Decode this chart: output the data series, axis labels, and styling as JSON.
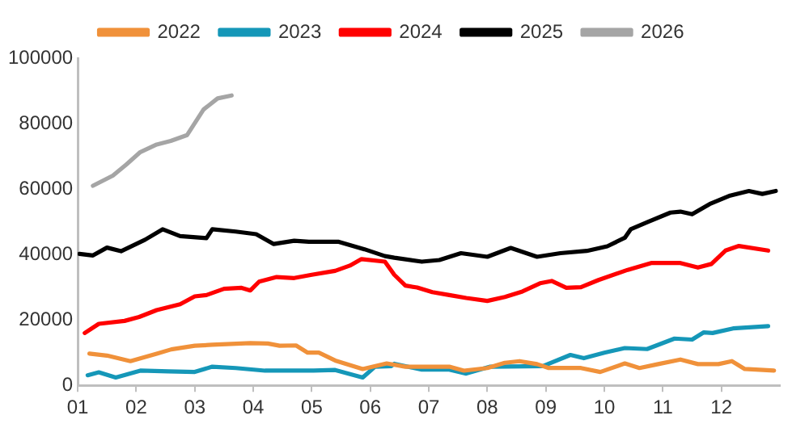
{
  "chart_data": {
    "type": "line",
    "legend": "top",
    "grid": false,
    "marker": "none",
    "line_style": "solid",
    "xlim": [
      1,
      13
    ],
    "xticks": [
      {
        "value": 1,
        "label": "01"
      },
      {
        "value": 2,
        "label": "02"
      },
      {
        "value": 3,
        "label": "03"
      },
      {
        "value": 4,
        "label": "04"
      },
      {
        "value": 5,
        "label": "05"
      },
      {
        "value": 6,
        "label": "06"
      },
      {
        "value": 7,
        "label": "07"
      },
      {
        "value": 8,
        "label": "08"
      },
      {
        "value": 9,
        "label": "09"
      },
      {
        "value": 10,
        "label": "10"
      },
      {
        "value": 11,
        "label": "11"
      },
      {
        "value": 12,
        "label": "12"
      }
    ],
    "ylim": [
      0,
      100000
    ],
    "yticks": [
      0,
      20000,
      40000,
      60000,
      80000,
      100000
    ],
    "series": [
      {
        "name": "2022",
        "color": "#f0913a",
        "x": [
          1.2,
          1.5,
          1.9,
          2.35,
          2.6,
          3.0,
          3.3,
          3.95,
          4.25,
          4.45,
          4.73,
          4.93,
          5.12,
          5.4,
          5.87,
          6.28,
          6.6,
          7.35,
          7.6,
          8.0,
          8.3,
          8.55,
          8.85,
          9.05,
          9.6,
          9.93,
          10.35,
          10.6,
          10.92,
          11.3,
          11.6,
          11.95,
          12.18,
          12.4,
          12.9
        ],
        "values": [
          9700,
          9100,
          7400,
          9700,
          11000,
          12100,
          12400,
          12900,
          12800,
          12100,
          12200,
          10000,
          10000,
          7600,
          5000,
          6700,
          5700,
          5700,
          4500,
          5300,
          6900,
          7400,
          6500,
          5300,
          5300,
          4100,
          6700,
          5300,
          6500,
          7900,
          6500,
          6500,
          7400,
          5000,
          4500
        ]
      },
      {
        "name": "2023",
        "color": "#1597b8",
        "x": [
          1.17,
          1.36,
          1.65,
          2.07,
          2.55,
          3.0,
          3.3,
          3.7,
          4.2,
          4.55,
          5.03,
          5.4,
          5.87,
          6.08,
          6.36,
          6.41,
          6.88,
          7.35,
          7.64,
          8.05,
          8.95,
          9.42,
          9.65,
          10.0,
          10.35,
          10.73,
          11.2,
          11.5,
          11.7,
          11.85,
          12.2,
          12.8
        ],
        "values": [
          3100,
          4000,
          2400,
          4500,
          4300,
          4100,
          5700,
          5300,
          4500,
          4500,
          4500,
          4700,
          2400,
          5700,
          5900,
          6600,
          4800,
          4800,
          3600,
          5700,
          5900,
          9300,
          8300,
          10000,
          11400,
          11100,
          14300,
          14000,
          16200,
          16000,
          17400,
          18100
        ]
      },
      {
        "name": "2024",
        "color": "#ff0000",
        "x": [
          1.12,
          1.36,
          1.8,
          2.05,
          2.35,
          2.75,
          3.0,
          3.2,
          3.5,
          3.8,
          3.95,
          4.1,
          4.4,
          4.7,
          5.0,
          5.4,
          5.65,
          5.85,
          6.25,
          6.41,
          6.6,
          6.8,
          7.06,
          7.35,
          7.64,
          8.0,
          8.3,
          8.6,
          8.9,
          9.1,
          9.35,
          9.6,
          9.9,
          10.4,
          10.8,
          11.3,
          11.6,
          11.83,
          12.07,
          12.3,
          12.8
        ],
        "values": [
          16000,
          18800,
          19700,
          20900,
          23000,
          24800,
          27200,
          27600,
          29500,
          29800,
          29000,
          31700,
          33100,
          32800,
          33800,
          35000,
          36600,
          38600,
          37800,
          33800,
          30500,
          29900,
          28500,
          27600,
          26700,
          25800,
          27000,
          28700,
          31200,
          31900,
          29800,
          30000,
          32200,
          35300,
          37400,
          37400,
          36000,
          37100,
          41200,
          42600,
          41200
        ]
      },
      {
        "name": "2025",
        "color": "#000000",
        "x": [
          1.03,
          1.26,
          1.5,
          1.74,
          2.15,
          2.45,
          2.75,
          3.2,
          3.3,
          3.7,
          4.05,
          4.35,
          4.7,
          4.95,
          5.45,
          5.9,
          6.25,
          6.41,
          6.88,
          7.18,
          7.55,
          8.0,
          8.4,
          8.85,
          9.25,
          9.7,
          10.05,
          10.35,
          10.45,
          10.75,
          11.13,
          11.3,
          11.5,
          11.8,
          12.15,
          12.47,
          12.7,
          12.93
        ],
        "values": [
          40200,
          39700,
          42100,
          41000,
          44500,
          47700,
          45600,
          45000,
          47700,
          47000,
          46200,
          43200,
          44200,
          43900,
          43900,
          41600,
          39500,
          39000,
          37800,
          38300,
          40400,
          39300,
          42000,
          39300,
          40400,
          41100,
          42500,
          45100,
          47700,
          50000,
          52800,
          53100,
          52300,
          55400,
          58000,
          59400,
          58500,
          59400
        ]
      },
      {
        "name": "2026",
        "color": "#a5a5a5",
        "x": [
          1.26,
          1.6,
          1.83,
          2.07,
          2.35,
          2.59,
          2.87,
          3.15,
          3.39,
          3.63
        ],
        "values": [
          61000,
          64100,
          67500,
          71300,
          73600,
          74700,
          76500,
          84300,
          87700,
          88600
        ]
      }
    ]
  }
}
